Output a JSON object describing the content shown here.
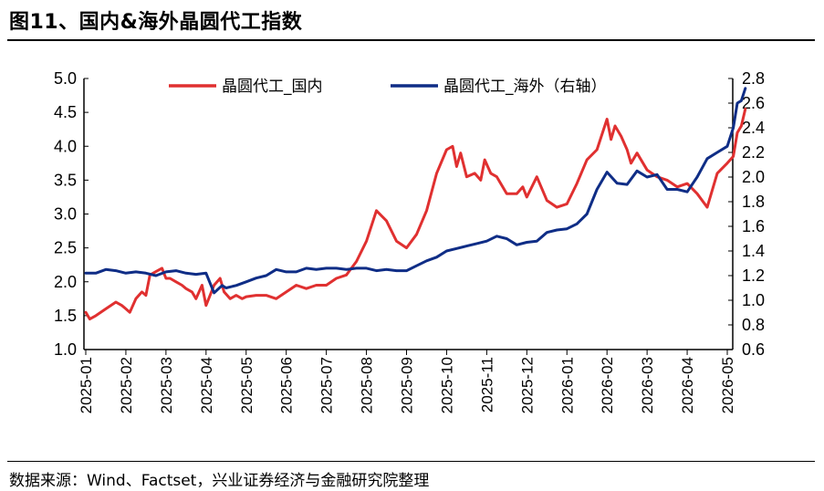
{
  "figure_title": "图11、国内&海外晶圆代工指数",
  "source": "数据来源：Wind、Factset，兴业证券经济与金融研究院整理",
  "colors": {
    "domestic": "#e03030",
    "overseas": "#0f2d86",
    "axis": "#000000"
  },
  "chart_data": {
    "type": "line",
    "legend_position": "top",
    "grid": false,
    "x_ticks": [
      "2025-01",
      "2025-02",
      "2025-03",
      "2025-04",
      "2025-05",
      "2025-06",
      "2025-07",
      "2025-08",
      "2025-09",
      "2025-10",
      "2025-11",
      "2025-12",
      "2026-01",
      "2026-02",
      "2026-03",
      "2026-04",
      "2026-05"
    ],
    "y_left": {
      "min": 1.0,
      "max": 5.0,
      "ticks": [
        "1.0",
        "1.5",
        "2.0",
        "2.5",
        "3.0",
        "3.5",
        "4.0",
        "4.5",
        "5.0"
      ]
    },
    "y_right": {
      "min": 0.6,
      "max": 2.8,
      "ticks": [
        "0.6",
        "0.8",
        "1.0",
        "1.2",
        "1.4",
        "1.6",
        "1.8",
        "2.0",
        "2.2",
        "2.4",
        "2.6",
        "2.8"
      ]
    },
    "series": [
      {
        "name": "晶圆代工_国内",
        "axis": "left",
        "x": [
          0,
          0.1,
          0.25,
          0.5,
          0.75,
          0.9,
          1.0,
          1.1,
          1.25,
          1.4,
          1.5,
          1.6,
          1.75,
          1.9,
          2.0,
          2.1,
          2.25,
          2.4,
          2.5,
          2.65,
          2.75,
          2.9,
          3.0,
          3.2,
          3.35,
          3.45,
          3.6,
          3.75,
          3.9,
          4.0,
          4.25,
          4.5,
          4.75,
          5.0,
          5.25,
          5.5,
          5.75,
          6.0,
          6.25,
          6.5,
          6.75,
          7.0,
          7.25,
          7.5,
          7.75,
          8.0,
          8.25,
          8.5,
          8.75,
          9.0,
          9.15,
          9.25,
          9.35,
          9.5,
          9.7,
          9.85,
          9.95,
          10.1,
          10.25,
          10.5,
          10.75,
          10.9,
          11.0,
          11.25,
          11.5,
          11.75,
          12.0,
          12.25,
          12.5,
          12.75,
          13.0,
          13.1,
          13.2,
          13.35,
          13.5,
          13.6,
          13.75,
          14.0,
          14.25,
          14.5,
          14.75,
          15.0,
          15.25,
          15.5,
          15.75,
          16.0,
          16.15,
          16.25,
          16.35,
          16.45
        ],
        "values": [
          1.55,
          1.45,
          1.5,
          1.6,
          1.7,
          1.65,
          1.6,
          1.55,
          1.75,
          1.85,
          1.8,
          2.1,
          2.15,
          2.2,
          2.05,
          2.05,
          2.0,
          1.95,
          1.9,
          1.85,
          1.75,
          1.95,
          1.65,
          1.95,
          2.05,
          1.85,
          1.75,
          1.8,
          1.75,
          1.78,
          1.8,
          1.8,
          1.75,
          1.85,
          1.95,
          1.9,
          1.95,
          1.95,
          2.05,
          2.1,
          2.3,
          2.6,
          3.05,
          2.9,
          2.6,
          2.5,
          2.7,
          3.05,
          3.6,
          3.95,
          4.0,
          3.7,
          3.9,
          3.55,
          3.6,
          3.5,
          3.8,
          3.6,
          3.55,
          3.3,
          3.3,
          3.4,
          3.25,
          3.55,
          3.2,
          3.1,
          3.15,
          3.45,
          3.8,
          3.95,
          4.4,
          4.1,
          4.3,
          4.15,
          3.95,
          3.75,
          3.9,
          3.65,
          3.55,
          3.5,
          3.4,
          3.45,
          3.3,
          3.1,
          3.6,
          3.75,
          3.85,
          4.2,
          4.3,
          4.55
        ]
      },
      {
        "name": "晶圆代工_海外（右轴）",
        "axis": "right",
        "x": [
          0,
          0.25,
          0.5,
          0.75,
          1.0,
          1.25,
          1.5,
          1.75,
          2.0,
          2.25,
          2.5,
          2.75,
          3.0,
          3.2,
          3.4,
          3.5,
          3.75,
          4.0,
          4.25,
          4.5,
          4.75,
          5.0,
          5.25,
          5.5,
          5.75,
          6.0,
          6.25,
          6.5,
          6.75,
          7.0,
          7.25,
          7.5,
          7.75,
          8.0,
          8.25,
          8.5,
          8.75,
          9.0,
          9.25,
          9.5,
          9.75,
          10.0,
          10.25,
          10.5,
          10.75,
          11.0,
          11.25,
          11.5,
          11.75,
          12.0,
          12.25,
          12.5,
          12.75,
          13.0,
          13.25,
          13.5,
          13.75,
          14.0,
          14.25,
          14.5,
          14.75,
          15.0,
          15.25,
          15.5,
          15.75,
          16.0,
          16.15,
          16.25,
          16.35,
          16.45
        ],
        "values": [
          1.22,
          1.22,
          1.25,
          1.24,
          1.22,
          1.23,
          1.22,
          1.2,
          1.23,
          1.24,
          1.22,
          1.21,
          1.22,
          1.06,
          1.12,
          1.1,
          1.12,
          1.15,
          1.18,
          1.2,
          1.25,
          1.23,
          1.23,
          1.26,
          1.25,
          1.26,
          1.26,
          1.25,
          1.26,
          1.26,
          1.24,
          1.25,
          1.24,
          1.24,
          1.28,
          1.32,
          1.35,
          1.4,
          1.42,
          1.44,
          1.46,
          1.48,
          1.52,
          1.5,
          1.45,
          1.47,
          1.48,
          1.55,
          1.57,
          1.58,
          1.62,
          1.7,
          1.9,
          2.04,
          1.95,
          1.94,
          2.05,
          2.0,
          2.02,
          1.9,
          1.9,
          1.88,
          2.0,
          2.15,
          2.2,
          2.25,
          2.4,
          2.6,
          2.62,
          2.72
        ]
      }
    ]
  }
}
